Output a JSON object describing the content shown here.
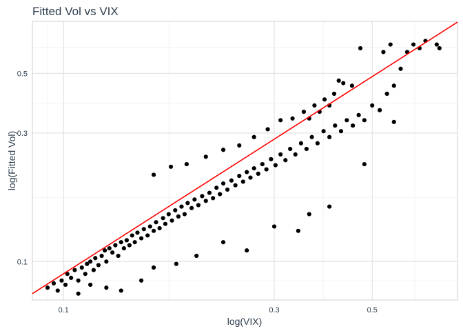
{
  "chart_data": {
    "type": "scatter",
    "title": "Fitted Vol vs VIX",
    "xlabel": "log(VIX)",
    "ylabel": "log(Fitted Vol)",
    "x_scale": "log",
    "y_scale": "log",
    "xlim": [
      0.085,
      0.78
    ],
    "ylim": [
      0.072,
      0.78
    ],
    "x_ticks": [
      0.1,
      0.3,
      0.5
    ],
    "x_tick_labels": [
      "0.1",
      "0.3",
      "0.5"
    ],
    "y_ticks": [
      0.1,
      0.3,
      0.5
    ],
    "y_tick_labels": [
      "0.1",
      "0.3",
      "0.5"
    ],
    "grid": true,
    "point_color": "#000000",
    "line_color": "#ff0000",
    "fit_line": {
      "x": [
        0.085,
        0.78
      ],
      "y": [
        0.076,
        0.775
      ]
    },
    "points": [
      [
        0.092,
        0.08
      ],
      [
        0.095,
        0.083
      ],
      [
        0.097,
        0.078
      ],
      [
        0.099,
        0.085
      ],
      [
        0.101,
        0.082
      ],
      [
        0.102,
        0.09
      ],
      [
        0.104,
        0.087
      ],
      [
        0.106,
        0.093
      ],
      [
        0.108,
        0.085
      ],
      [
        0.11,
        0.095
      ],
      [
        0.112,
        0.09
      ],
      [
        0.113,
        0.098
      ],
      [
        0.115,
        0.1
      ],
      [
        0.117,
        0.093
      ],
      [
        0.118,
        0.103
      ],
      [
        0.12,
        0.097
      ],
      [
        0.122,
        0.105
      ],
      [
        0.124,
        0.11
      ],
      [
        0.125,
        0.1
      ],
      [
        0.127,
        0.112
      ],
      [
        0.129,
        0.108
      ],
      [
        0.131,
        0.115
      ],
      [
        0.133,
        0.105
      ],
      [
        0.135,
        0.118
      ],
      [
        0.137,
        0.112
      ],
      [
        0.139,
        0.12
      ],
      [
        0.141,
        0.115
      ],
      [
        0.143,
        0.125
      ],
      [
        0.145,
        0.118
      ],
      [
        0.147,
        0.128
      ],
      [
        0.15,
        0.122
      ],
      [
        0.152,
        0.132
      ],
      [
        0.155,
        0.125
      ],
      [
        0.157,
        0.135
      ],
      [
        0.16,
        0.13
      ],
      [
        0.162,
        0.14
      ],
      [
        0.165,
        0.133
      ],
      [
        0.168,
        0.145
      ],
      [
        0.17,
        0.138
      ],
      [
        0.173,
        0.15
      ],
      [
        0.176,
        0.142
      ],
      [
        0.179,
        0.155
      ],
      [
        0.182,
        0.147
      ],
      [
        0.185,
        0.16
      ],
      [
        0.188,
        0.15
      ],
      [
        0.191,
        0.165
      ],
      [
        0.195,
        0.158
      ],
      [
        0.198,
        0.17
      ],
      [
        0.202,
        0.162
      ],
      [
        0.206,
        0.175
      ],
      [
        0.21,
        0.168
      ],
      [
        0.214,
        0.18
      ],
      [
        0.218,
        0.172
      ],
      [
        0.222,
        0.188
      ],
      [
        0.226,
        0.178
      ],
      [
        0.23,
        0.195
      ],
      [
        0.235,
        0.185
      ],
      [
        0.24,
        0.2
      ],
      [
        0.245,
        0.192
      ],
      [
        0.25,
        0.208
      ],
      [
        0.255,
        0.198
      ],
      [
        0.26,
        0.215
      ],
      [
        0.265,
        0.205
      ],
      [
        0.27,
        0.222
      ],
      [
        0.276,
        0.212
      ],
      [
        0.282,
        0.23
      ],
      [
        0.288,
        0.22
      ],
      [
        0.295,
        0.24
      ],
      [
        0.302,
        0.228
      ],
      [
        0.31,
        0.25
      ],
      [
        0.318,
        0.238
      ],
      [
        0.326,
        0.262
      ],
      [
        0.335,
        0.25
      ],
      [
        0.345,
        0.275
      ],
      [
        0.355,
        0.262
      ],
      [
        0.365,
        0.29
      ],
      [
        0.376,
        0.275
      ],
      [
        0.388,
        0.305
      ],
      [
        0.4,
        0.29
      ],
      [
        0.412,
        0.32
      ],
      [
        0.425,
        0.305
      ],
      [
        0.438,
        0.335
      ],
      [
        0.452,
        0.32
      ],
      [
        0.466,
        0.35
      ],
      [
        0.48,
        0.335
      ],
      [
        0.5,
        0.38
      ],
      [
        0.52,
        0.365
      ],
      [
        0.54,
        0.42
      ],
      [
        0.56,
        0.45
      ],
      [
        0.58,
        0.52
      ],
      [
        0.6,
        0.6
      ],
      [
        0.62,
        0.64
      ],
      [
        0.64,
        0.62
      ],
      [
        0.66,
        0.66
      ],
      [
        0.7,
        0.64
      ],
      [
        0.71,
        0.62
      ],
      [
        0.53,
        0.6
      ],
      [
        0.55,
        0.64
      ],
      [
        0.47,
        0.62
      ],
      [
        0.56,
        0.33
      ],
      [
        0.48,
        0.23
      ],
      [
        0.4,
        0.16
      ],
      [
        0.36,
        0.15
      ],
      [
        0.34,
        0.13
      ],
      [
        0.3,
        0.135
      ],
      [
        0.26,
        0.11
      ],
      [
        0.23,
        0.118
      ],
      [
        0.2,
        0.105
      ],
      [
        0.18,
        0.098
      ],
      [
        0.16,
        0.095
      ],
      [
        0.15,
        0.085
      ],
      [
        0.135,
        0.078
      ],
      [
        0.125,
        0.08
      ],
      [
        0.115,
        0.082
      ],
      [
        0.108,
        0.076
      ],
      [
        0.16,
        0.21
      ],
      [
        0.175,
        0.225
      ],
      [
        0.19,
        0.23
      ],
      [
        0.21,
        0.245
      ],
      [
        0.23,
        0.26
      ],
      [
        0.25,
        0.27
      ],
      [
        0.27,
        0.29
      ],
      [
        0.29,
        0.31
      ],
      [
        0.31,
        0.335
      ],
      [
        0.33,
        0.34
      ],
      [
        0.35,
        0.36
      ],
      [
        0.37,
        0.38
      ],
      [
        0.39,
        0.4
      ],
      [
        0.41,
        0.42
      ],
      [
        0.43,
        0.46
      ],
      [
        0.45,
        0.45
      ],
      [
        0.42,
        0.47
      ],
      [
        0.4,
        0.38
      ],
      [
        0.38,
        0.36
      ],
      [
        0.36,
        0.34
      ]
    ]
  }
}
